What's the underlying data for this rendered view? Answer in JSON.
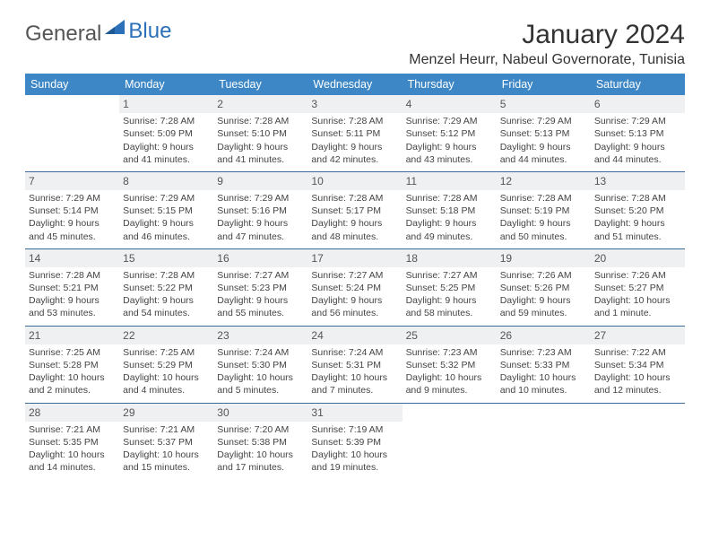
{
  "brand": {
    "part1": "General",
    "part2": "Blue"
  },
  "title": "January 2024",
  "location": "Menzel Heurr, Nabeul Governorate, Tunisia",
  "day_headers": [
    "Sunday",
    "Monday",
    "Tuesday",
    "Wednesday",
    "Thursday",
    "Friday",
    "Saturday"
  ],
  "header_bg": "#3d87c7",
  "header_fg": "#ffffff",
  "daynum_bg": "#eef0f2",
  "row_border": "#3d6a99",
  "weeks": [
    [
      {
        "n": "",
        "lines": []
      },
      {
        "n": "1",
        "lines": [
          "Sunrise: 7:28 AM",
          "Sunset: 5:09 PM",
          "Daylight: 9 hours and 41 minutes."
        ]
      },
      {
        "n": "2",
        "lines": [
          "Sunrise: 7:28 AM",
          "Sunset: 5:10 PM",
          "Daylight: 9 hours and 41 minutes."
        ]
      },
      {
        "n": "3",
        "lines": [
          "Sunrise: 7:28 AM",
          "Sunset: 5:11 PM",
          "Daylight: 9 hours and 42 minutes."
        ]
      },
      {
        "n": "4",
        "lines": [
          "Sunrise: 7:29 AM",
          "Sunset: 5:12 PM",
          "Daylight: 9 hours and 43 minutes."
        ]
      },
      {
        "n": "5",
        "lines": [
          "Sunrise: 7:29 AM",
          "Sunset: 5:13 PM",
          "Daylight: 9 hours and 44 minutes."
        ]
      },
      {
        "n": "6",
        "lines": [
          "Sunrise: 7:29 AM",
          "Sunset: 5:13 PM",
          "Daylight: 9 hours and 44 minutes."
        ]
      }
    ],
    [
      {
        "n": "7",
        "lines": [
          "Sunrise: 7:29 AM",
          "Sunset: 5:14 PM",
          "Daylight: 9 hours and 45 minutes."
        ]
      },
      {
        "n": "8",
        "lines": [
          "Sunrise: 7:29 AM",
          "Sunset: 5:15 PM",
          "Daylight: 9 hours and 46 minutes."
        ]
      },
      {
        "n": "9",
        "lines": [
          "Sunrise: 7:29 AM",
          "Sunset: 5:16 PM",
          "Daylight: 9 hours and 47 minutes."
        ]
      },
      {
        "n": "10",
        "lines": [
          "Sunrise: 7:28 AM",
          "Sunset: 5:17 PM",
          "Daylight: 9 hours and 48 minutes."
        ]
      },
      {
        "n": "11",
        "lines": [
          "Sunrise: 7:28 AM",
          "Sunset: 5:18 PM",
          "Daylight: 9 hours and 49 minutes."
        ]
      },
      {
        "n": "12",
        "lines": [
          "Sunrise: 7:28 AM",
          "Sunset: 5:19 PM",
          "Daylight: 9 hours and 50 minutes."
        ]
      },
      {
        "n": "13",
        "lines": [
          "Sunrise: 7:28 AM",
          "Sunset: 5:20 PM",
          "Daylight: 9 hours and 51 minutes."
        ]
      }
    ],
    [
      {
        "n": "14",
        "lines": [
          "Sunrise: 7:28 AM",
          "Sunset: 5:21 PM",
          "Daylight: 9 hours and 53 minutes."
        ]
      },
      {
        "n": "15",
        "lines": [
          "Sunrise: 7:28 AM",
          "Sunset: 5:22 PM",
          "Daylight: 9 hours and 54 minutes."
        ]
      },
      {
        "n": "16",
        "lines": [
          "Sunrise: 7:27 AM",
          "Sunset: 5:23 PM",
          "Daylight: 9 hours and 55 minutes."
        ]
      },
      {
        "n": "17",
        "lines": [
          "Sunrise: 7:27 AM",
          "Sunset: 5:24 PM",
          "Daylight: 9 hours and 56 minutes."
        ]
      },
      {
        "n": "18",
        "lines": [
          "Sunrise: 7:27 AM",
          "Sunset: 5:25 PM",
          "Daylight: 9 hours and 58 minutes."
        ]
      },
      {
        "n": "19",
        "lines": [
          "Sunrise: 7:26 AM",
          "Sunset: 5:26 PM",
          "Daylight: 9 hours and 59 minutes."
        ]
      },
      {
        "n": "20",
        "lines": [
          "Sunrise: 7:26 AM",
          "Sunset: 5:27 PM",
          "Daylight: 10 hours and 1 minute."
        ]
      }
    ],
    [
      {
        "n": "21",
        "lines": [
          "Sunrise: 7:25 AM",
          "Sunset: 5:28 PM",
          "Daylight: 10 hours and 2 minutes."
        ]
      },
      {
        "n": "22",
        "lines": [
          "Sunrise: 7:25 AM",
          "Sunset: 5:29 PM",
          "Daylight: 10 hours and 4 minutes."
        ]
      },
      {
        "n": "23",
        "lines": [
          "Sunrise: 7:24 AM",
          "Sunset: 5:30 PM",
          "Daylight: 10 hours and 5 minutes."
        ]
      },
      {
        "n": "24",
        "lines": [
          "Sunrise: 7:24 AM",
          "Sunset: 5:31 PM",
          "Daylight: 10 hours and 7 minutes."
        ]
      },
      {
        "n": "25",
        "lines": [
          "Sunrise: 7:23 AM",
          "Sunset: 5:32 PM",
          "Daylight: 10 hours and 9 minutes."
        ]
      },
      {
        "n": "26",
        "lines": [
          "Sunrise: 7:23 AM",
          "Sunset: 5:33 PM",
          "Daylight: 10 hours and 10 minutes."
        ]
      },
      {
        "n": "27",
        "lines": [
          "Sunrise: 7:22 AM",
          "Sunset: 5:34 PM",
          "Daylight: 10 hours and 12 minutes."
        ]
      }
    ],
    [
      {
        "n": "28",
        "lines": [
          "Sunrise: 7:21 AM",
          "Sunset: 5:35 PM",
          "Daylight: 10 hours and 14 minutes."
        ]
      },
      {
        "n": "29",
        "lines": [
          "Sunrise: 7:21 AM",
          "Sunset: 5:37 PM",
          "Daylight: 10 hours and 15 minutes."
        ]
      },
      {
        "n": "30",
        "lines": [
          "Sunrise: 7:20 AM",
          "Sunset: 5:38 PM",
          "Daylight: 10 hours and 17 minutes."
        ]
      },
      {
        "n": "31",
        "lines": [
          "Sunrise: 7:19 AM",
          "Sunset: 5:39 PM",
          "Daylight: 10 hours and 19 minutes."
        ]
      },
      {
        "n": "",
        "lines": []
      },
      {
        "n": "",
        "lines": []
      },
      {
        "n": "",
        "lines": []
      }
    ]
  ]
}
